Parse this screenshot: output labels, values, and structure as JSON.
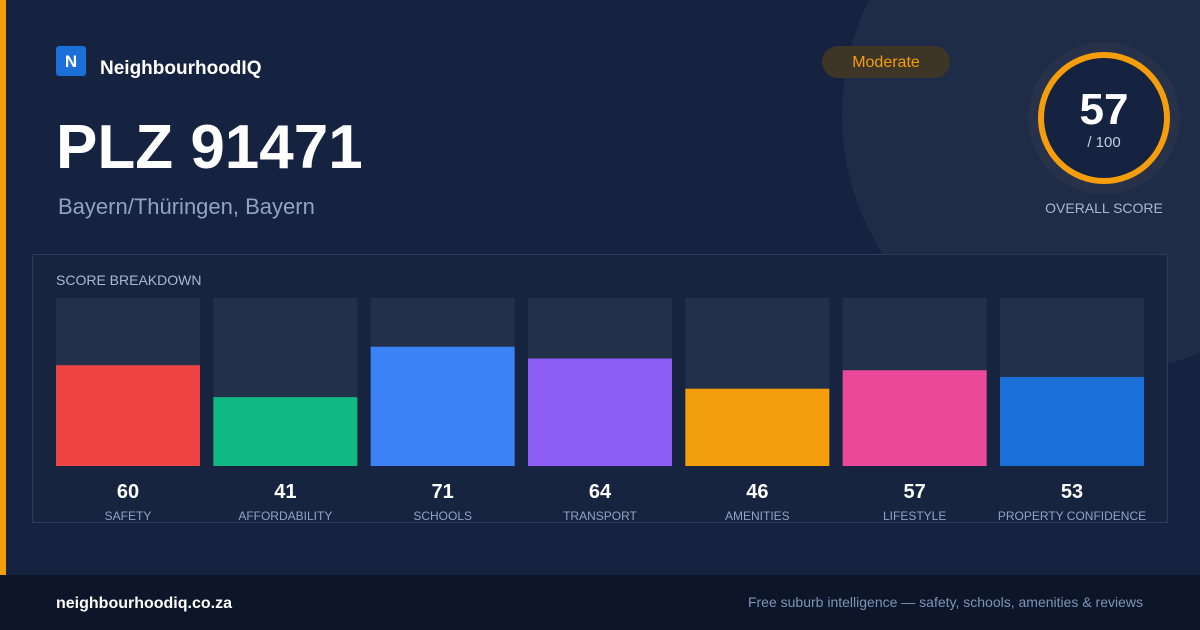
{
  "brand": {
    "logo": "N",
    "name": "NeighbourhoodIQ"
  },
  "badge": "Moderate",
  "header": {
    "title": "PLZ 91471",
    "subtitle": "Bayern/Thüringen, Bayern"
  },
  "score": {
    "value": "57",
    "max": "/ 100",
    "label": "OVERALL SCORE"
  },
  "chart_data": {
    "type": "bar",
    "title": "SCORE BREAKDOWN",
    "categories": [
      "SAFETY",
      "AFFORDABILITY",
      "SCHOOLS",
      "TRANSPORT",
      "AMENITIES",
      "LIFESTYLE",
      "PROPERTY CONFIDENCE"
    ],
    "values": [
      60,
      41,
      71,
      64,
      46,
      57,
      53
    ],
    "colors": [
      "#ef4444",
      "#10b981",
      "#3b82f6",
      "#8b5cf6",
      "#f59e0b",
      "#ec4899",
      "#1d6fd8"
    ],
    "ylim": [
      0,
      100
    ]
  },
  "footer": {
    "site": "neighbourhoodiq.co.za",
    "tagline": "Free suburb intelligence — safety, schools, amenities & reviews"
  }
}
